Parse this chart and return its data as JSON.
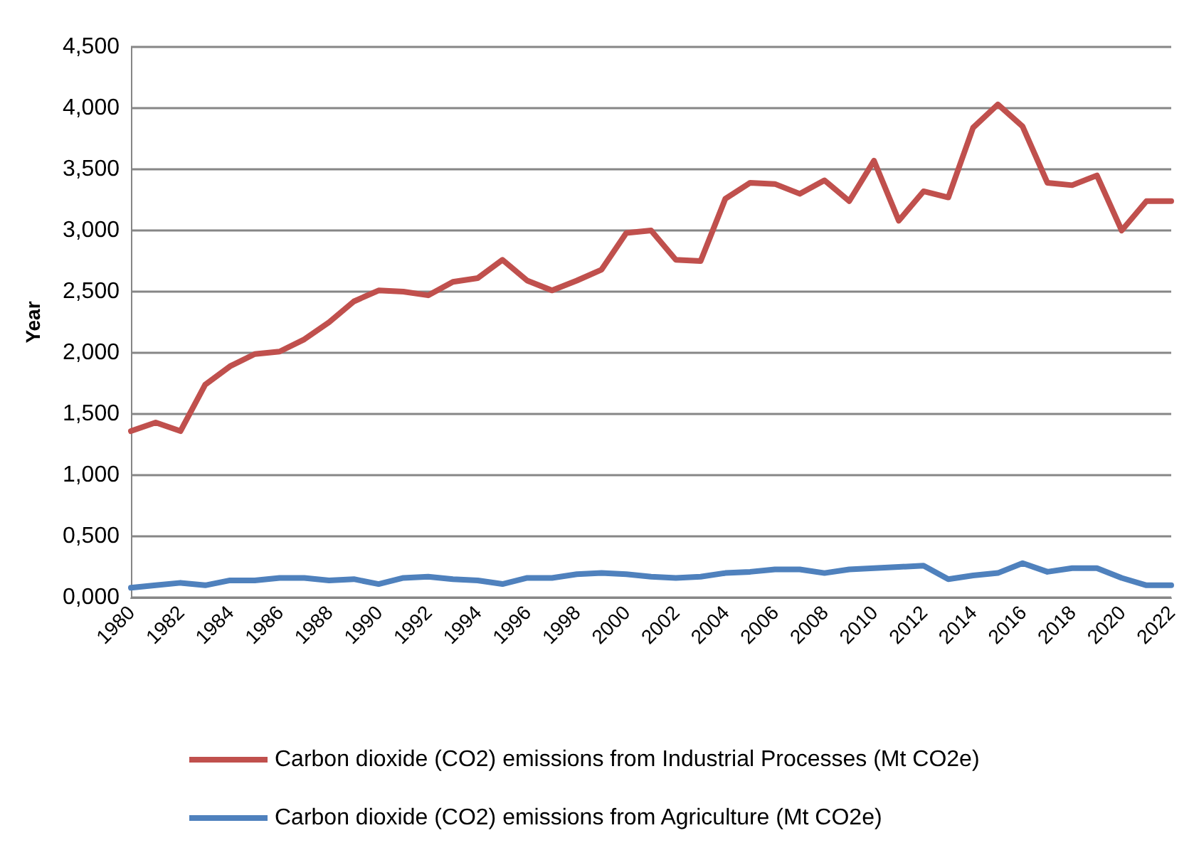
{
  "chart_data": {
    "type": "line",
    "ylabel": "Year",
    "categories": [
      "1980",
      null,
      "1982",
      null,
      "1984",
      null,
      "1986",
      null,
      "1988",
      null,
      "1990",
      null,
      "1992",
      null,
      "1994",
      null,
      "1996",
      null,
      "1998",
      null,
      "2000",
      null,
      "2002",
      null,
      "2004",
      null,
      "2006",
      null,
      "2008",
      null,
      "2010",
      null,
      "2012",
      null,
      "2014",
      null,
      "2016",
      null,
      "2018",
      null,
      "2020",
      null,
      "2022"
    ],
    "series": [
      {
        "name": "Carbon dioxide (CO2) emissions from Industrial Processes (Mt CO2e)",
        "color": "#c0504d",
        "values": [
          1.36,
          1.43,
          1.36,
          1.74,
          1.89,
          1.99,
          2.01,
          2.11,
          2.25,
          2.42,
          2.51,
          2.5,
          2.47,
          2.58,
          2.61,
          2.76,
          2.59,
          2.51,
          2.59,
          2.68,
          2.98,
          3.0,
          2.76,
          2.75,
          3.26,
          3.39,
          3.38,
          3.3,
          3.41,
          3.24,
          3.57,
          3.08,
          3.32,
          3.27,
          3.84,
          4.03,
          3.85,
          3.39,
          3.37,
          3.45,
          3.0,
          3.24,
          3.24
        ]
      },
      {
        "name": "Carbon dioxide (CO2) emissions from Agriculture (Mt CO2e)",
        "color": "#4f81bd",
        "values": [
          0.08,
          0.1,
          0.12,
          0.1,
          0.14,
          0.14,
          0.16,
          0.16,
          0.14,
          0.15,
          0.11,
          0.16,
          0.17,
          0.15,
          0.14,
          0.11,
          0.16,
          0.16,
          0.19,
          0.2,
          0.19,
          0.17,
          0.16,
          0.17,
          0.2,
          0.21,
          0.23,
          0.23,
          0.2,
          0.23,
          0.24,
          0.25,
          0.26,
          0.15,
          0.18,
          0.2,
          0.28,
          0.21,
          0.24,
          0.24,
          0.16,
          0.1,
          0.1
        ]
      }
    ],
    "ylim": [
      0,
      4.5
    ],
    "yticks": [
      {
        "value": 0,
        "label": "0,000"
      },
      {
        "value": 0.5,
        "label": "0,500"
      },
      {
        "value": 1,
        "label": "1,000"
      },
      {
        "value": 1.5,
        "label": "1,500"
      },
      {
        "value": 2,
        "label": "2,000"
      },
      {
        "value": 2.5,
        "label": "2,500"
      },
      {
        "value": 3,
        "label": "3,000"
      },
      {
        "value": 3.5,
        "label": "3,500"
      },
      {
        "value": 4,
        "label": "4,000"
      },
      {
        "value": 4.5,
        "label": "4,500"
      }
    ],
    "grid": "y",
    "legend": "bottom",
    "marker": "none",
    "line_style": "solid"
  }
}
